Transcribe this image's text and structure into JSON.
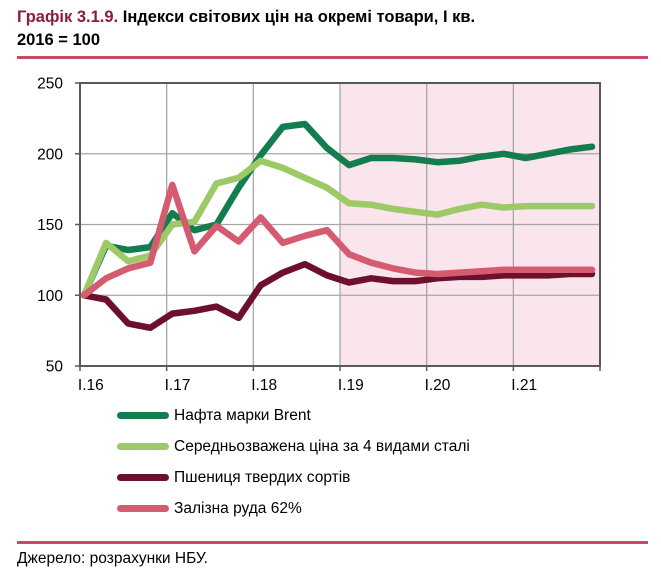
{
  "header": {
    "title_prefix": "Графік 3.1.9.",
    "title_line1": "Індекси світових цін на окремі товари, І кв.",
    "title_line2": "2016 = 100"
  },
  "chart_data": {
    "type": "line",
    "frequency": "quarterly",
    "x_tick_labels": [
      "І.16",
      "І.17",
      "І.18",
      "І.19",
      "І.20",
      "І.21"
    ],
    "y_ticks": [
      250,
      200,
      150,
      100,
      50
    ],
    "ylim": [
      50,
      250
    ],
    "grid": true,
    "legend_position": "bottom-left",
    "forecast_region": {
      "start_tick": "І.19",
      "fill": "#fbe5ec"
    },
    "series": [
      {
        "key": "brent",
        "name": "Нафта марки Brent",
        "color": "#137d4d",
        "values": [
          100,
          135,
          132,
          134,
          158,
          146,
          150,
          176,
          199,
          219,
          221,
          204,
          192,
          197,
          197,
          196,
          194,
          195,
          198,
          200,
          197,
          200,
          203,
          205
        ]
      },
      {
        "key": "steel",
        "name": "Середньозважена ціна за 4 видами сталі",
        "color": "#9dc967",
        "values": [
          100,
          137,
          124,
          128,
          150,
          152,
          179,
          183,
          195,
          190,
          183,
          176,
          165,
          164,
          161,
          159,
          157,
          161,
          164,
          162,
          163,
          163,
          163,
          163
        ]
      },
      {
        "key": "wheat",
        "name": "Пшениця твердих сортів",
        "color": "#6d102e",
        "values": [
          100,
          97,
          80,
          77,
          87,
          89,
          92,
          84,
          107,
          116,
          122,
          114,
          109,
          112,
          110,
          110,
          112,
          113,
          113,
          114,
          114,
          114,
          115,
          115
        ]
      },
      {
        "key": "iron-ore",
        "name": "Залізна руда 62%",
        "color": "#d55c70",
        "values": [
          100,
          112,
          119,
          123,
          178,
          131,
          149,
          138,
          155,
          137,
          142,
          146,
          129,
          123,
          119,
          116,
          115,
          116,
          117,
          118,
          118,
          118,
          118,
          118
        ]
      }
    ]
  },
  "source": {
    "text": "Джерело: розрахунки НБУ."
  },
  "colors": {
    "title_accent": "#8e1b41",
    "rule": "#c64a64",
    "plot_border": "#595959",
    "gridline": "#a6a6a6",
    "text": "#000000"
  }
}
